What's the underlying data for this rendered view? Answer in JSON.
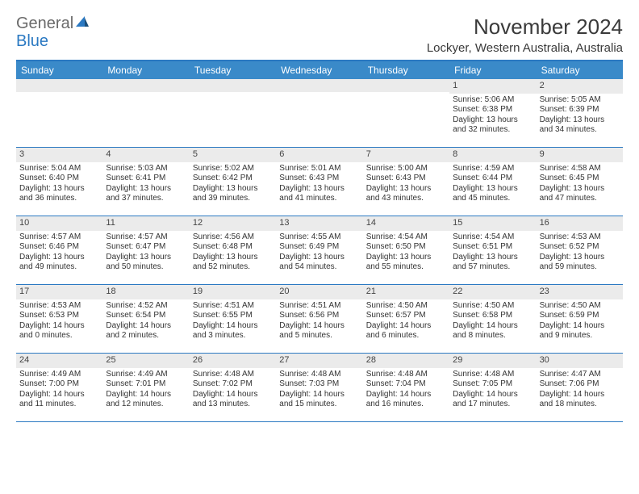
{
  "logo": {
    "text1": "General",
    "text2": "Blue"
  },
  "title": "November 2024",
  "location": "Lockyer, Western Australia, Australia",
  "colors": {
    "header_bg": "#3a8ac9",
    "border": "#2b79c2",
    "daynum_bg": "#ebebeb",
    "text": "#333333",
    "logo_grey": "#6a6a6a",
    "logo_blue": "#2b79c2"
  },
  "day_headers": [
    "Sunday",
    "Monday",
    "Tuesday",
    "Wednesday",
    "Thursday",
    "Friday",
    "Saturday"
  ],
  "weeks": [
    [
      {
        "blank": true
      },
      {
        "blank": true
      },
      {
        "blank": true
      },
      {
        "blank": true
      },
      {
        "blank": true
      },
      {
        "n": "1",
        "sunrise": "Sunrise: 5:06 AM",
        "sunset": "Sunset: 6:38 PM",
        "dl1": "Daylight: 13 hours",
        "dl2": "and 32 minutes."
      },
      {
        "n": "2",
        "sunrise": "Sunrise: 5:05 AM",
        "sunset": "Sunset: 6:39 PM",
        "dl1": "Daylight: 13 hours",
        "dl2": "and 34 minutes."
      }
    ],
    [
      {
        "n": "3",
        "sunrise": "Sunrise: 5:04 AM",
        "sunset": "Sunset: 6:40 PM",
        "dl1": "Daylight: 13 hours",
        "dl2": "and 36 minutes."
      },
      {
        "n": "4",
        "sunrise": "Sunrise: 5:03 AM",
        "sunset": "Sunset: 6:41 PM",
        "dl1": "Daylight: 13 hours",
        "dl2": "and 37 minutes."
      },
      {
        "n": "5",
        "sunrise": "Sunrise: 5:02 AM",
        "sunset": "Sunset: 6:42 PM",
        "dl1": "Daylight: 13 hours",
        "dl2": "and 39 minutes."
      },
      {
        "n": "6",
        "sunrise": "Sunrise: 5:01 AM",
        "sunset": "Sunset: 6:43 PM",
        "dl1": "Daylight: 13 hours",
        "dl2": "and 41 minutes."
      },
      {
        "n": "7",
        "sunrise": "Sunrise: 5:00 AM",
        "sunset": "Sunset: 6:43 PM",
        "dl1": "Daylight: 13 hours",
        "dl2": "and 43 minutes."
      },
      {
        "n": "8",
        "sunrise": "Sunrise: 4:59 AM",
        "sunset": "Sunset: 6:44 PM",
        "dl1": "Daylight: 13 hours",
        "dl2": "and 45 minutes."
      },
      {
        "n": "9",
        "sunrise": "Sunrise: 4:58 AM",
        "sunset": "Sunset: 6:45 PM",
        "dl1": "Daylight: 13 hours",
        "dl2": "and 47 minutes."
      }
    ],
    [
      {
        "n": "10",
        "sunrise": "Sunrise: 4:57 AM",
        "sunset": "Sunset: 6:46 PM",
        "dl1": "Daylight: 13 hours",
        "dl2": "and 49 minutes."
      },
      {
        "n": "11",
        "sunrise": "Sunrise: 4:57 AM",
        "sunset": "Sunset: 6:47 PM",
        "dl1": "Daylight: 13 hours",
        "dl2": "and 50 minutes."
      },
      {
        "n": "12",
        "sunrise": "Sunrise: 4:56 AM",
        "sunset": "Sunset: 6:48 PM",
        "dl1": "Daylight: 13 hours",
        "dl2": "and 52 minutes."
      },
      {
        "n": "13",
        "sunrise": "Sunrise: 4:55 AM",
        "sunset": "Sunset: 6:49 PM",
        "dl1": "Daylight: 13 hours",
        "dl2": "and 54 minutes."
      },
      {
        "n": "14",
        "sunrise": "Sunrise: 4:54 AM",
        "sunset": "Sunset: 6:50 PM",
        "dl1": "Daylight: 13 hours",
        "dl2": "and 55 minutes."
      },
      {
        "n": "15",
        "sunrise": "Sunrise: 4:54 AM",
        "sunset": "Sunset: 6:51 PM",
        "dl1": "Daylight: 13 hours",
        "dl2": "and 57 minutes."
      },
      {
        "n": "16",
        "sunrise": "Sunrise: 4:53 AM",
        "sunset": "Sunset: 6:52 PM",
        "dl1": "Daylight: 13 hours",
        "dl2": "and 59 minutes."
      }
    ],
    [
      {
        "n": "17",
        "sunrise": "Sunrise: 4:53 AM",
        "sunset": "Sunset: 6:53 PM",
        "dl1": "Daylight: 14 hours",
        "dl2": "and 0 minutes."
      },
      {
        "n": "18",
        "sunrise": "Sunrise: 4:52 AM",
        "sunset": "Sunset: 6:54 PM",
        "dl1": "Daylight: 14 hours",
        "dl2": "and 2 minutes."
      },
      {
        "n": "19",
        "sunrise": "Sunrise: 4:51 AM",
        "sunset": "Sunset: 6:55 PM",
        "dl1": "Daylight: 14 hours",
        "dl2": "and 3 minutes."
      },
      {
        "n": "20",
        "sunrise": "Sunrise: 4:51 AM",
        "sunset": "Sunset: 6:56 PM",
        "dl1": "Daylight: 14 hours",
        "dl2": "and 5 minutes."
      },
      {
        "n": "21",
        "sunrise": "Sunrise: 4:50 AM",
        "sunset": "Sunset: 6:57 PM",
        "dl1": "Daylight: 14 hours",
        "dl2": "and 6 minutes."
      },
      {
        "n": "22",
        "sunrise": "Sunrise: 4:50 AM",
        "sunset": "Sunset: 6:58 PM",
        "dl1": "Daylight: 14 hours",
        "dl2": "and 8 minutes."
      },
      {
        "n": "23",
        "sunrise": "Sunrise: 4:50 AM",
        "sunset": "Sunset: 6:59 PM",
        "dl1": "Daylight: 14 hours",
        "dl2": "and 9 minutes."
      }
    ],
    [
      {
        "n": "24",
        "sunrise": "Sunrise: 4:49 AM",
        "sunset": "Sunset: 7:00 PM",
        "dl1": "Daylight: 14 hours",
        "dl2": "and 11 minutes."
      },
      {
        "n": "25",
        "sunrise": "Sunrise: 4:49 AM",
        "sunset": "Sunset: 7:01 PM",
        "dl1": "Daylight: 14 hours",
        "dl2": "and 12 minutes."
      },
      {
        "n": "26",
        "sunrise": "Sunrise: 4:48 AM",
        "sunset": "Sunset: 7:02 PM",
        "dl1": "Daylight: 14 hours",
        "dl2": "and 13 minutes."
      },
      {
        "n": "27",
        "sunrise": "Sunrise: 4:48 AM",
        "sunset": "Sunset: 7:03 PM",
        "dl1": "Daylight: 14 hours",
        "dl2": "and 15 minutes."
      },
      {
        "n": "28",
        "sunrise": "Sunrise: 4:48 AM",
        "sunset": "Sunset: 7:04 PM",
        "dl1": "Daylight: 14 hours",
        "dl2": "and 16 minutes."
      },
      {
        "n": "29",
        "sunrise": "Sunrise: 4:48 AM",
        "sunset": "Sunset: 7:05 PM",
        "dl1": "Daylight: 14 hours",
        "dl2": "and 17 minutes."
      },
      {
        "n": "30",
        "sunrise": "Sunrise: 4:47 AM",
        "sunset": "Sunset: 7:06 PM",
        "dl1": "Daylight: 14 hours",
        "dl2": "and 18 minutes."
      }
    ]
  ]
}
